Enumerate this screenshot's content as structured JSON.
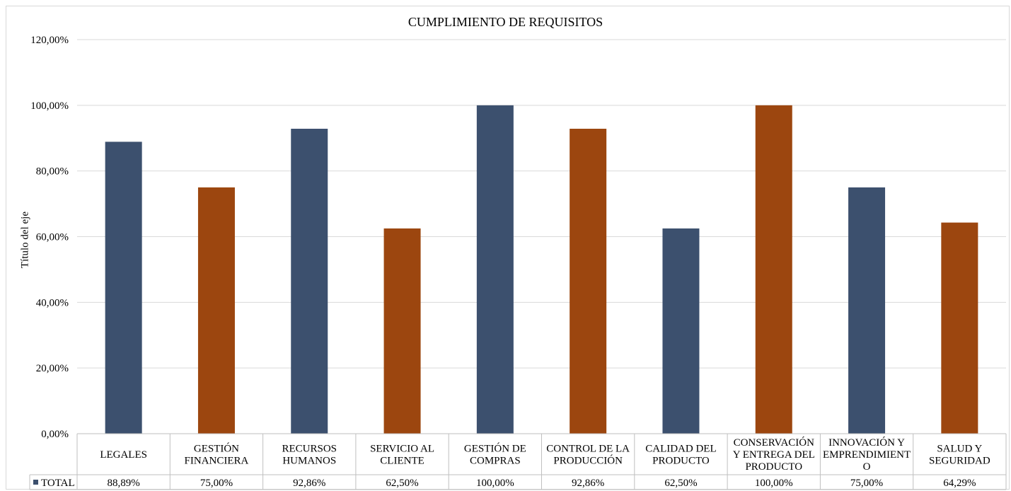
{
  "chart_data": {
    "type": "bar",
    "title": "CUMPLIMIENTO DE REQUISITOS",
    "xlabel": "",
    "ylabel": "Título del eje",
    "ylim": [
      0,
      120
    ],
    "yticks": [
      "0,00%",
      "20,00%",
      "40,00%",
      "60,00%",
      "80,00%",
      "100,00%",
      "120,00%"
    ],
    "grid": true,
    "categories": [
      [
        "LEGALES"
      ],
      [
        "GESTIÓN",
        "FINANCIERA"
      ],
      [
        "RECURSOS",
        "HUMANOS"
      ],
      [
        "SERVICIO AL",
        "CLIENTE"
      ],
      [
        "GESTIÓN DE",
        "COMPRAS"
      ],
      [
        "CONTROL DE LA",
        "PRODUCCIÓN"
      ],
      [
        "CALIDAD DEL",
        "PRODUCTO"
      ],
      [
        "CONSERVACIÓN",
        "Y ENTREGA DEL",
        "PRODUCTO"
      ],
      [
        "INNOVACIÓN Y",
        "EMPRENDIMIENT",
        "O"
      ],
      [
        "SALUD Y",
        "SEGURIDAD"
      ]
    ],
    "series": [
      {
        "name": "TOTAL",
        "values": [
          88.89,
          75.0,
          92.86,
          62.5,
          100.0,
          92.86,
          62.5,
          100.0,
          75.0,
          64.29
        ],
        "labels": [
          "88,89%",
          "75,00%",
          "92,86%",
          "62,50%",
          "100,00%",
          "92,86%",
          "62,50%",
          "100,00%",
          "75,00%",
          "64,29%"
        ]
      }
    ],
    "bar_colors": [
      "#3c506e",
      "#9c460f",
      "#3c506e",
      "#9c460f",
      "#3c506e",
      "#9c460f",
      "#3c506e",
      "#9c460f",
      "#3c506e",
      "#9c460f"
    ],
    "legend": "data-table-left"
  }
}
